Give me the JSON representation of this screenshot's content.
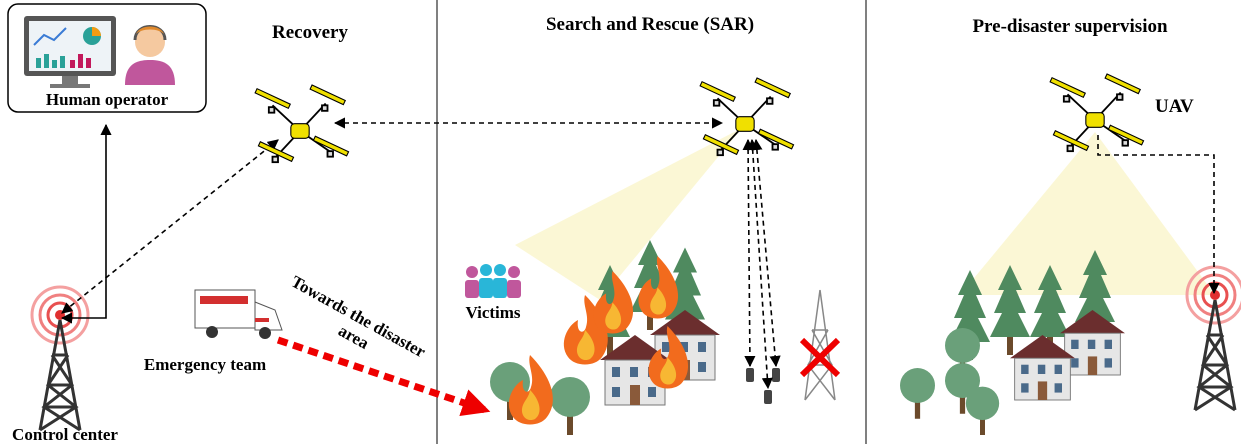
{
  "panels": {
    "recovery": "Recovery",
    "sar": "Search and Rescue (SAR)",
    "pre_disaster": "Pre-disaster supervision"
  },
  "labels": {
    "human_operator": "Human operator",
    "uav": "UAV",
    "victims": "Victims",
    "towards": [
      "Towards the disaster",
      "area"
    ],
    "emergency_team": "Emergency team",
    "control_center": "Control center"
  }
}
